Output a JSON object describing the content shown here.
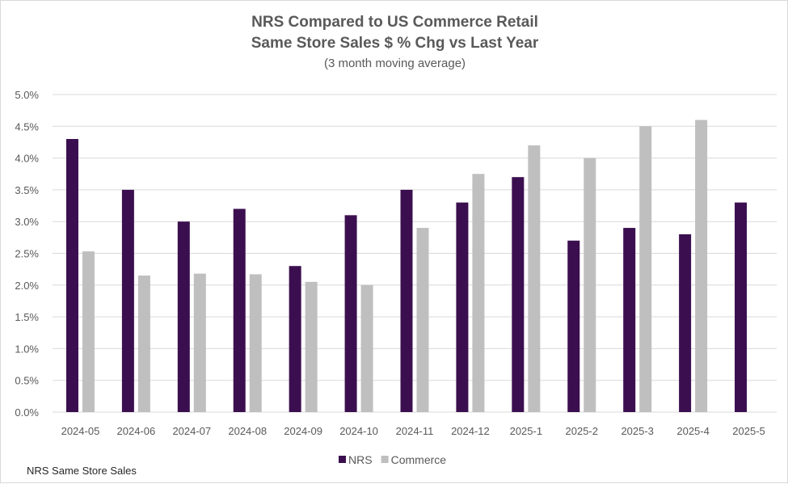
{
  "chart_data": {
    "type": "bar",
    "title_line1": "NRS Compared to US Commerce Retail",
    "title_line2": "Same Store Sales $ % Chg vs Last Year",
    "subtitle": "(3 month moving average)",
    "categories": [
      "2024-05",
      "2024-06",
      "2024-07",
      "2024-08",
      "2024-09",
      "2024-10",
      "2024-11",
      "2024-12",
      "2025-1",
      "2025-2",
      "2025-3",
      "2025-4",
      "2025-5"
    ],
    "series": [
      {
        "name": "NRS",
        "color": "#3b0f4f",
        "values": [
          4.3,
          3.5,
          3.0,
          3.2,
          2.3,
          3.1,
          3.5,
          3.3,
          3.7,
          2.7,
          2.9,
          2.8,
          3.3
        ]
      },
      {
        "name": "Commerce",
        "color": "#bfbfbf",
        "values": [
          2.53,
          2.15,
          2.18,
          2.17,
          2.05,
          2.0,
          2.9,
          3.75,
          4.2,
          4.0,
          4.5,
          4.6,
          null
        ]
      }
    ],
    "ylim": [
      0,
      5.0
    ],
    "yticks": [
      "0.0%",
      "0.5%",
      "1.0%",
      "1.5%",
      "2.0%",
      "2.5%",
      "3.0%",
      "3.5%",
      "4.0%",
      "4.5%",
      "5.0%"
    ],
    "ytick_values": [
      0,
      0.5,
      1.0,
      1.5,
      2.0,
      2.5,
      3.0,
      3.5,
      4.0,
      4.5,
      5.0
    ],
    "grid": true,
    "legend_position": "bottom"
  },
  "footnote": "NRS Same Store Sales"
}
